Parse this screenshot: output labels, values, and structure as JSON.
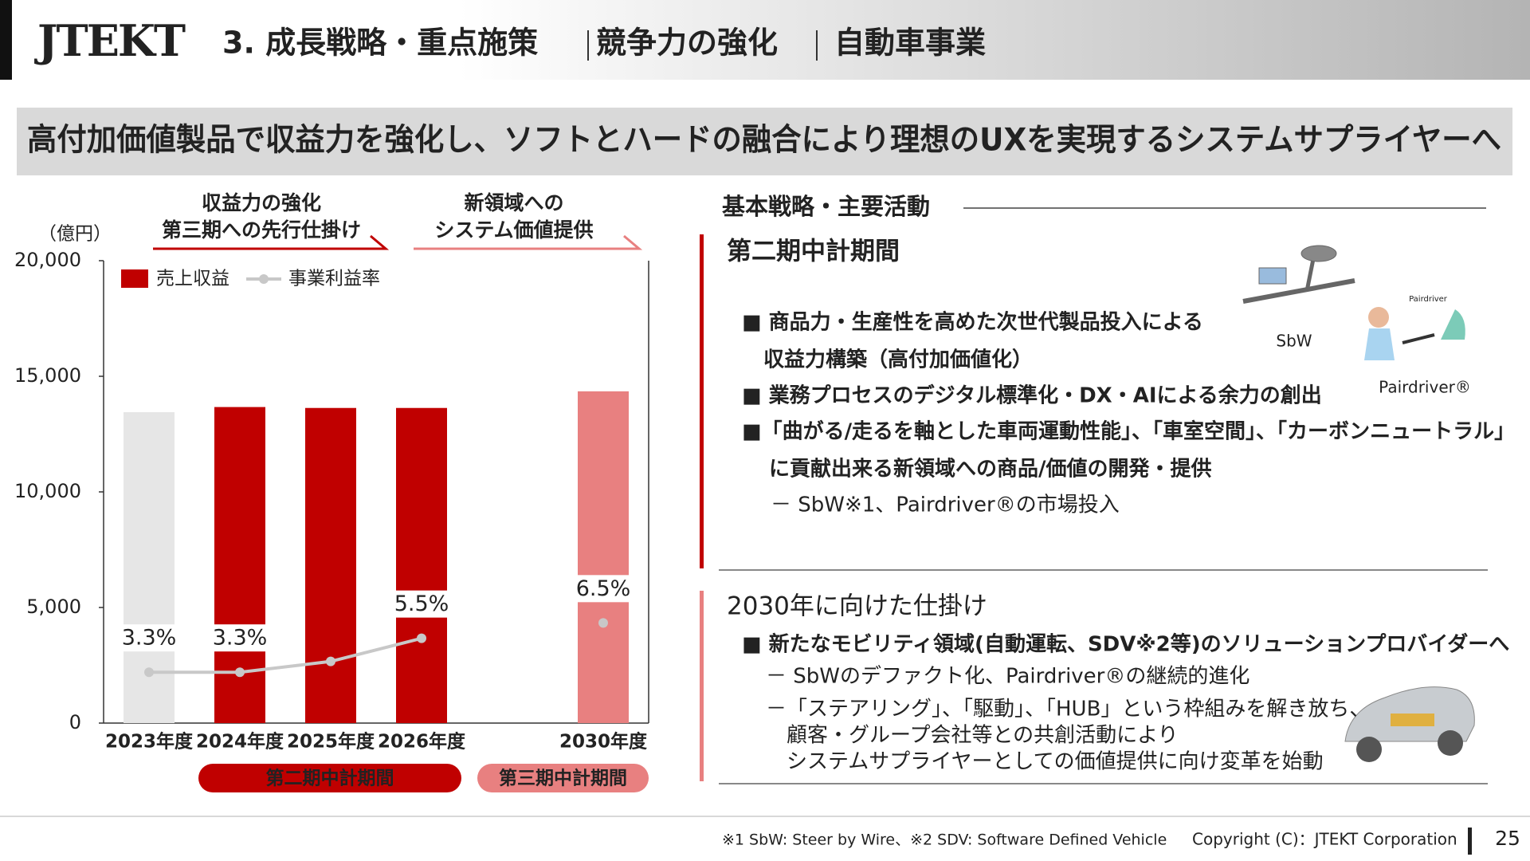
{
  "header": {
    "logo": "JTEKT",
    "title_parts": [
      "3. 成長戦略・重点施策",
      "競争力の強化",
      "自動車事業"
    ]
  },
  "banner": "高付加価値製品で収益力を強化し、ソフトとハードの融合により理想のUXを実現するシステムサプライヤーへ",
  "chart_data": {
    "type": "bar",
    "unit_label": "（億円）",
    "categories": [
      "2023年度",
      "2024年度",
      "2025年度",
      "2026年度",
      null,
      "2030年度"
    ],
    "series": [
      {
        "name": "売上収益",
        "color": "#c00000",
        "colors": [
          "#e6e6e6",
          "#c00000",
          "#c00000",
          "#c00000",
          null,
          "#e88080"
        ],
        "values": [
          13450,
          13670,
          13630,
          13630,
          null,
          14350
        ]
      },
      {
        "name": "事業利益率",
        "type": "line",
        "axis": "y2",
        "color": "#c8c8c8",
        "values": [
          3.3,
          3.3,
          4.0,
          5.5,
          null,
          6.5
        ],
        "value_labels": [
          "3.3%",
          "3.3%",
          null,
          "5.5%",
          null,
          "6.5%"
        ]
      }
    ],
    "ylim": [
      0,
      20000
    ],
    "yticks": [
      0,
      {
        "value": 5000,
        "label": "5,000"
      },
      {
        "value": 10000,
        "label": "10,000"
      },
      {
        "value": 15000,
        "label": "15,000"
      },
      {
        "value": 20000,
        "label": "20,000"
      }
    ],
    "y2lim": [
      0,
      30
    ],
    "grid": false,
    "legend": "top-left",
    "phase_headers": [
      {
        "lines": [
          "収益力の強化",
          "第三期への先行仕掛け"
        ],
        "color": "#c00000"
      },
      {
        "lines": [
          "新領域への",
          "システム価値提供"
        ],
        "color": "#e88080"
      }
    ],
    "periods": [
      {
        "label": "第二期中計期間",
        "color": "#c00000"
      },
      {
        "label": "第三期中計期間",
        "color": "#e88080"
      }
    ]
  },
  "strategy": {
    "heading": "基本戦略・主要活動",
    "sections": [
      {
        "title": "第二期中計期間",
        "color": "#c00000",
        "lines": [
          "■ 商品力・生産性を高めた次世代製品投入による",
          "収益力構築（高付加価値化）",
          "■ 業務プロセスのデジタル標準化・DX・AIによる余力の創出",
          "■「曲がる/走るを軸とした車両運動性能」、「車室空間」、「カーボンニュートラル」",
          "に貢献出来る新領域への商品/価値の開発・提供",
          "－ SbW※1、Pairdriver®の市場投入"
        ]
      },
      {
        "title": "2030年に向けた仕掛け",
        "color": "#e88080",
        "lines": [
          "■ 新たなモビリティ領域(自動運転、SDV※2等)のソリューションプロバイダーへ",
          "－ SbWのデファクト化、Pairdriver®の継続的進化",
          "－「ステアリング」、「駆動」、「HUB」という枠組みを解き放ち、",
          "顧客・グループ会社等との共創活動により",
          "システムサプライヤーとしての価値提供に向け変革を始動"
        ]
      }
    ],
    "image_labels": [
      "SbW",
      "Pairdriver®"
    ]
  },
  "footer": {
    "footnote": "※1 SbW: Steer by Wire、※2 SDV: Software Defined Vehicle",
    "copyright": "Copyright (C)：JTEKT Corporation",
    "page": "25"
  }
}
